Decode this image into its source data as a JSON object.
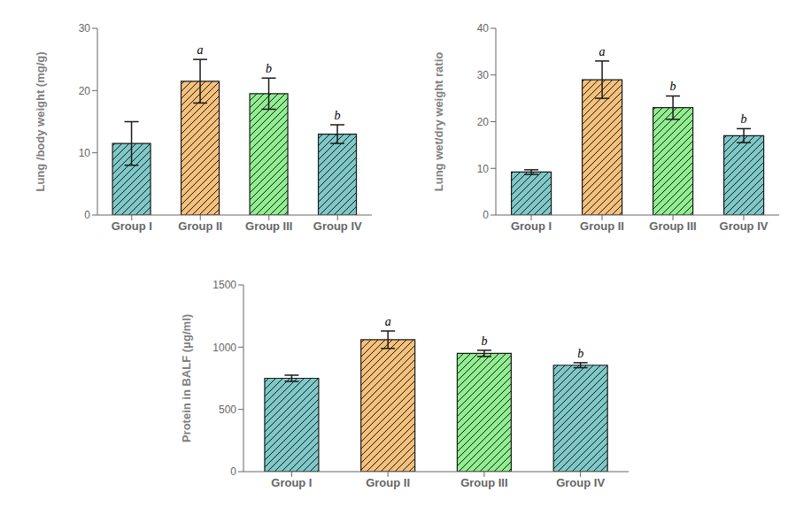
{
  "chart_data": [
    {
      "type": "bar",
      "ylabel": "Lung /body weight (mg/g)",
      "categories": [
        "Group I",
        "Group II",
        "Group III",
        "Group IV"
      ],
      "values": [
        11.5,
        21.5,
        19.5,
        13.0
      ],
      "errors": [
        3.5,
        3.5,
        2.5,
        1.5
      ],
      "annotations": [
        null,
        "a",
        "b",
        "b"
      ],
      "colors": [
        "#7EC8C8",
        "#F5C07A",
        "#90EE90",
        "#7EC8C8"
      ],
      "ylim": [
        0,
        30
      ],
      "yticks": [
        0,
        10,
        20,
        30
      ],
      "grid": false
    },
    {
      "type": "bar",
      "ylabel": "Lung wet/dry weight ratio",
      "categories": [
        "Group I",
        "Group II",
        "Group III",
        "Group IV"
      ],
      "values": [
        9.2,
        29.0,
        23.0,
        17.0
      ],
      "errors": [
        0.5,
        4.0,
        2.5,
        1.5
      ],
      "annotations": [
        null,
        "a",
        "b",
        "b"
      ],
      "colors": [
        "#7EC8C8",
        "#F5C07A",
        "#90EE90",
        "#7EC8C8"
      ],
      "ylim": [
        0,
        40
      ],
      "yticks": [
        0,
        10,
        20,
        30,
        40
      ],
      "grid": false
    },
    {
      "type": "bar",
      "ylabel": "Protein in BALF (μg/ml)",
      "categories": [
        "Group I",
        "Group II",
        "Group III",
        "Group IV"
      ],
      "values": [
        750,
        1060,
        950,
        855
      ],
      "errors": [
        25,
        70,
        25,
        20
      ],
      "annotations": [
        null,
        "a",
        "b",
        "b"
      ],
      "colors": [
        "#7EC8C8",
        "#F5C07A",
        "#90EE90",
        "#7EC8C8"
      ],
      "ylim": [
        0,
        1500
      ],
      "yticks": [
        0,
        500,
        1000,
        1500
      ],
      "grid": false
    }
  ]
}
